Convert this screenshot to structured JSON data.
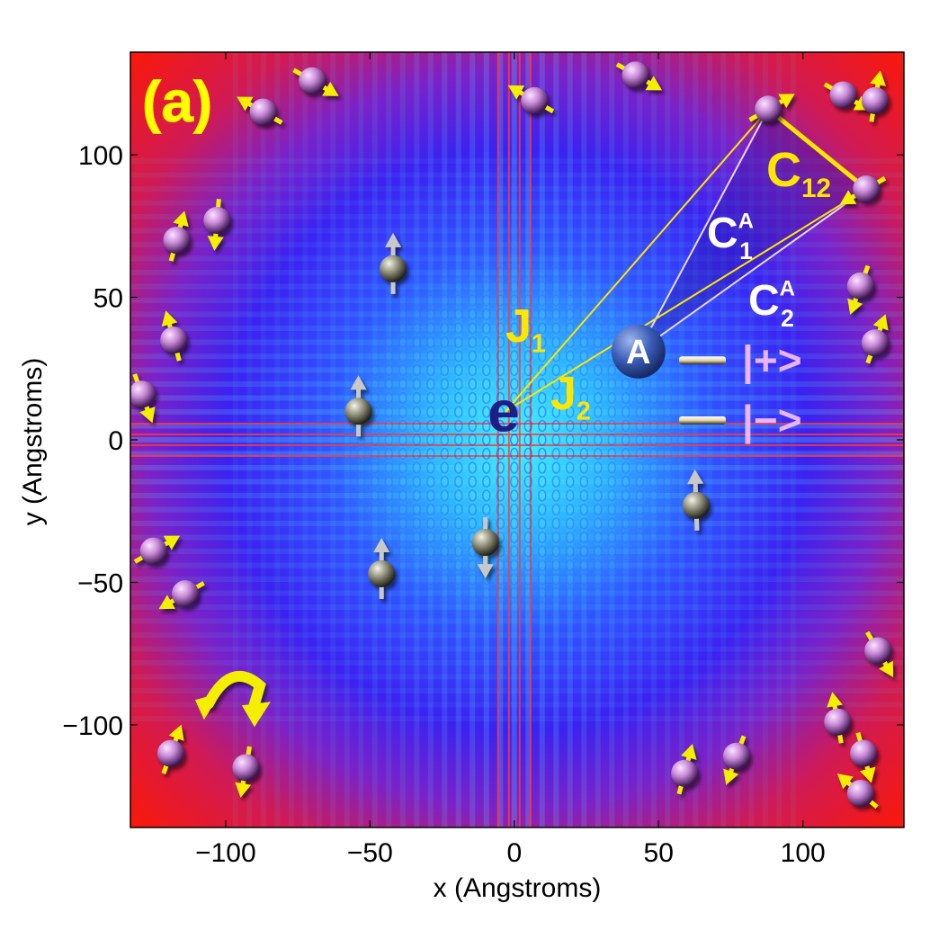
{
  "chart_data": {
    "type": "heatmap",
    "title": "",
    "panel_label": "(a)",
    "xlabel": "x (Angstroms)",
    "ylabel": "y (Angstroms)",
    "xlim": [
      -133,
      135
    ],
    "ylim": [
      -136,
      136
    ],
    "xticks": [
      -100,
      -50,
      0,
      50,
      100
    ],
    "yticks": [
      -100,
      -50,
      0,
      50,
      100
    ],
    "xtick_labels": [
      "−100",
      "−50",
      "0",
      "50",
      "100"
    ],
    "ytick_labels": [
      "−100",
      "−50",
      "0",
      "50",
      "100"
    ],
    "colormap": {
      "center": "#3ff0ff",
      "mid": "#3a2cff",
      "edge": "#ff1a00"
    },
    "electron": {
      "label": "e",
      "x": -3,
      "y": 10
    },
    "acceptor": {
      "label": "A",
      "x": 43,
      "y": 31
    },
    "couplings": {
      "j1": "1",
      "j2": "2",
      "c1": "1",
      "c2": "2",
      "c12": "12",
      "superscript": "A"
    },
    "coupling_letters": {
      "j": "J",
      "c": "C"
    },
    "states": [
      {
        "label": "|+>",
        "y": 28
      },
      {
        "label": "|−>",
        "y": 7
      }
    ],
    "host_spins": [
      {
        "x": -87,
        "y": 115,
        "dir": 150
      },
      {
        "x": -70,
        "y": 126,
        "dir": -30
      },
      {
        "x": 7,
        "y": 119,
        "dir": 150
      },
      {
        "x": 42,
        "y": 128,
        "dir": -30
      },
      {
        "x": 88,
        "y": 116,
        "dir": 30
      },
      {
        "x": 114,
        "y": 121,
        "dir": -30
      },
      {
        "x": 125,
        "y": 119,
        "dir": 80
      },
      {
        "x": 122,
        "y": 88,
        "dir": 210
      },
      {
        "x": -117,
        "y": 70,
        "dir": 75
      },
      {
        "x": -103,
        "y": 77,
        "dir": -95
      },
      {
        "x": -118,
        "y": 35,
        "dir": 105
      },
      {
        "x": -129,
        "y": 16,
        "dir": -70
      },
      {
        "x": 120,
        "y": 54,
        "dir": -110
      },
      {
        "x": 125,
        "y": 34,
        "dir": 70
      },
      {
        "x": -125,
        "y": -39,
        "dir": 30
      },
      {
        "x": -114,
        "y": -54,
        "dir": 210
      },
      {
        "x": -119,
        "y": -110,
        "dir": 70
      },
      {
        "x": -93,
        "y": -115,
        "dir": -100
      },
      {
        "x": 59,
        "y": -117,
        "dir": 75
      },
      {
        "x": 77,
        "y": -111,
        "dir": -110
      },
      {
        "x": 112,
        "y": -99,
        "dir": 100
      },
      {
        "x": 121,
        "y": -110,
        "dir": -75
      },
      {
        "x": 126,
        "y": -74,
        "dir": -60
      },
      {
        "x": 120,
        "y": -124,
        "dir": 140
      }
    ],
    "impurity_spins": [
      {
        "x": -42,
        "y": 60,
        "dir": 90
      },
      {
        "x": -54,
        "y": 10,
        "dir": 90
      },
      {
        "x": -46,
        "y": -47,
        "dir": 90
      },
      {
        "x": -10,
        "y": -36,
        "dir": -90
      },
      {
        "x": 63,
        "y": -23,
        "dir": 92
      }
    ],
    "rotation_arrow": {
      "x": -95,
      "y": -90
    }
  }
}
